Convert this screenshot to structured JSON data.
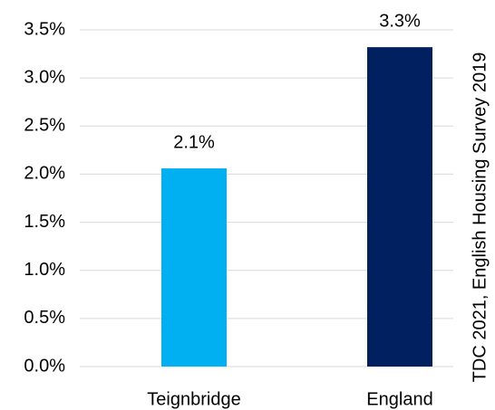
{
  "chart_data": {
    "type": "bar",
    "annotation": "TDC 2021, English Housing Survey 2019",
    "categories": [
      "Teignbridge",
      "England"
    ],
    "values": [
      2.06,
      3.32
    ],
    "value_labels": [
      "2.1%",
      "3.3%"
    ],
    "colors": [
      "#00b0f0",
      "#002060"
    ],
    "ylim": [
      0,
      3.5
    ],
    "yticks": [
      {
        "value": 0,
        "label": "0.0%"
      },
      {
        "value": 0.5,
        "label": "0.5%"
      },
      {
        "value": 1,
        "label": "1.0%"
      },
      {
        "value": 1.5,
        "label": "1.5%"
      },
      {
        "value": 2,
        "label": "2.0%"
      },
      {
        "value": 2.5,
        "label": "2.5%"
      },
      {
        "value": 3,
        "label": "3.0%"
      },
      {
        "value": 3.5,
        "label": "3.5%"
      }
    ],
    "grid": true
  }
}
